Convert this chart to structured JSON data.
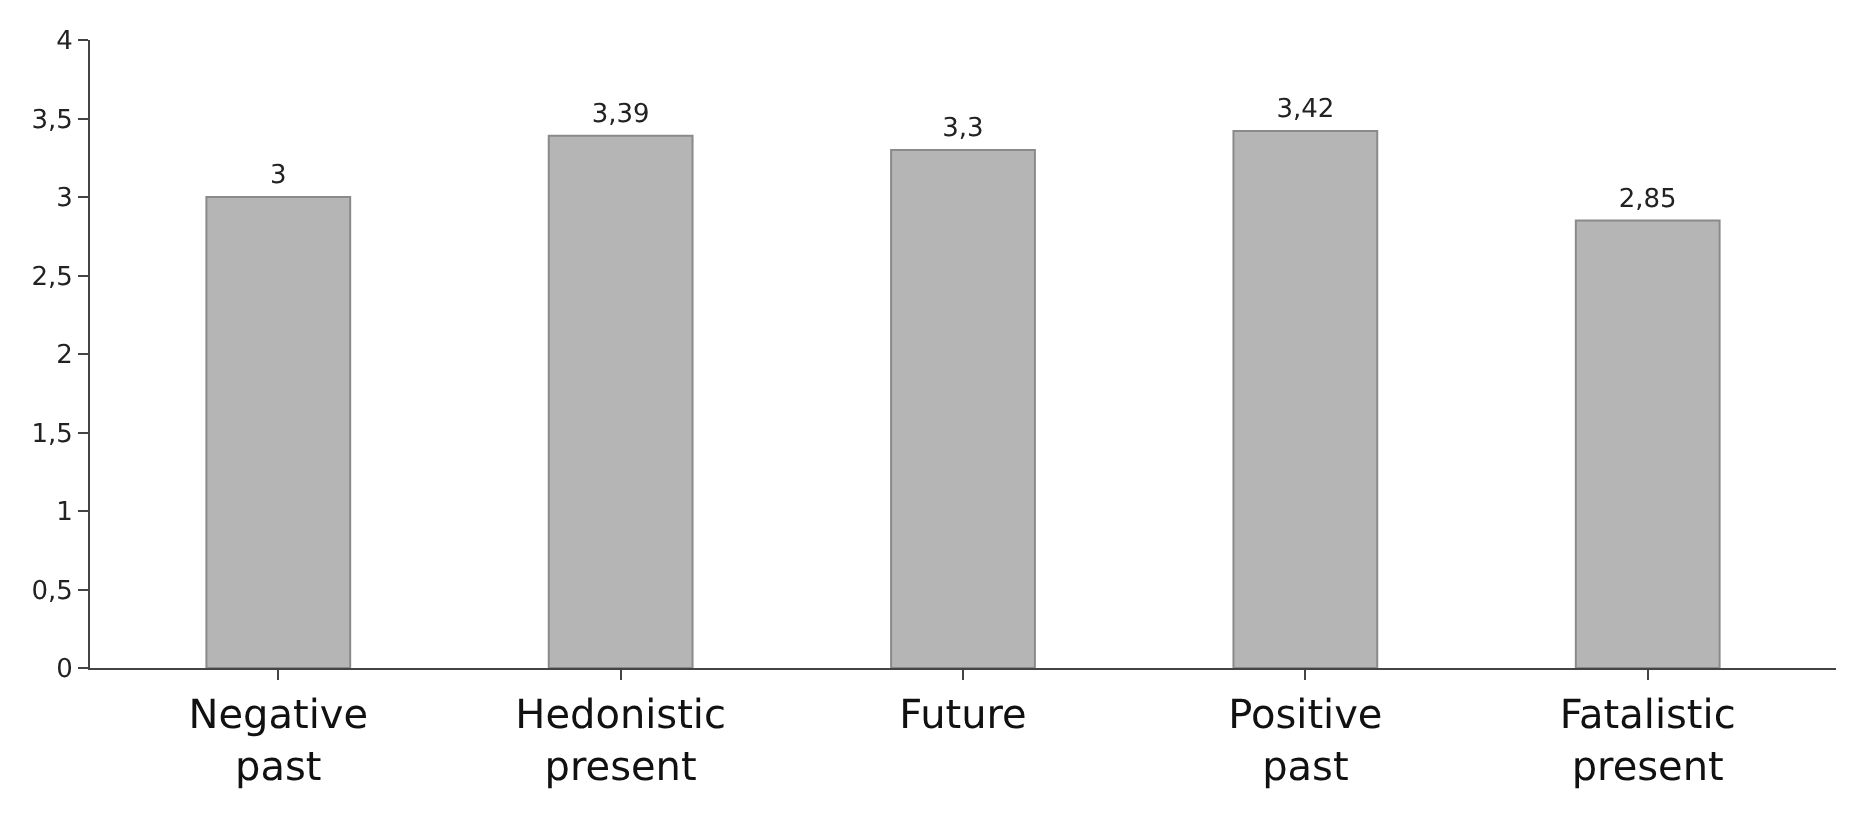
{
  "chart_data": {
    "type": "bar",
    "categories": [
      "Negative past",
      "Hedonistic present",
      "Future",
      "Positive past",
      "Fatalistic present"
    ],
    "values": [
      3,
      3.39,
      3.3,
      3.42,
      2.85
    ],
    "value_labels": [
      "3",
      "3,39",
      "3,3",
      "3,42",
      "2,85"
    ],
    "color": "#b5b5b5",
    "ylim": [
      0,
      4
    ],
    "yticks": [
      0,
      {
        "value": 0.5,
        "label": "0,5"
      },
      1,
      {
        "value": 1.5,
        "label": "1,5"
      },
      2,
      {
        "value": 2.5,
        "label": "2,5"
      },
      3,
      {
        "value": 3.5,
        "label": "3,5"
      },
      4
    ]
  }
}
